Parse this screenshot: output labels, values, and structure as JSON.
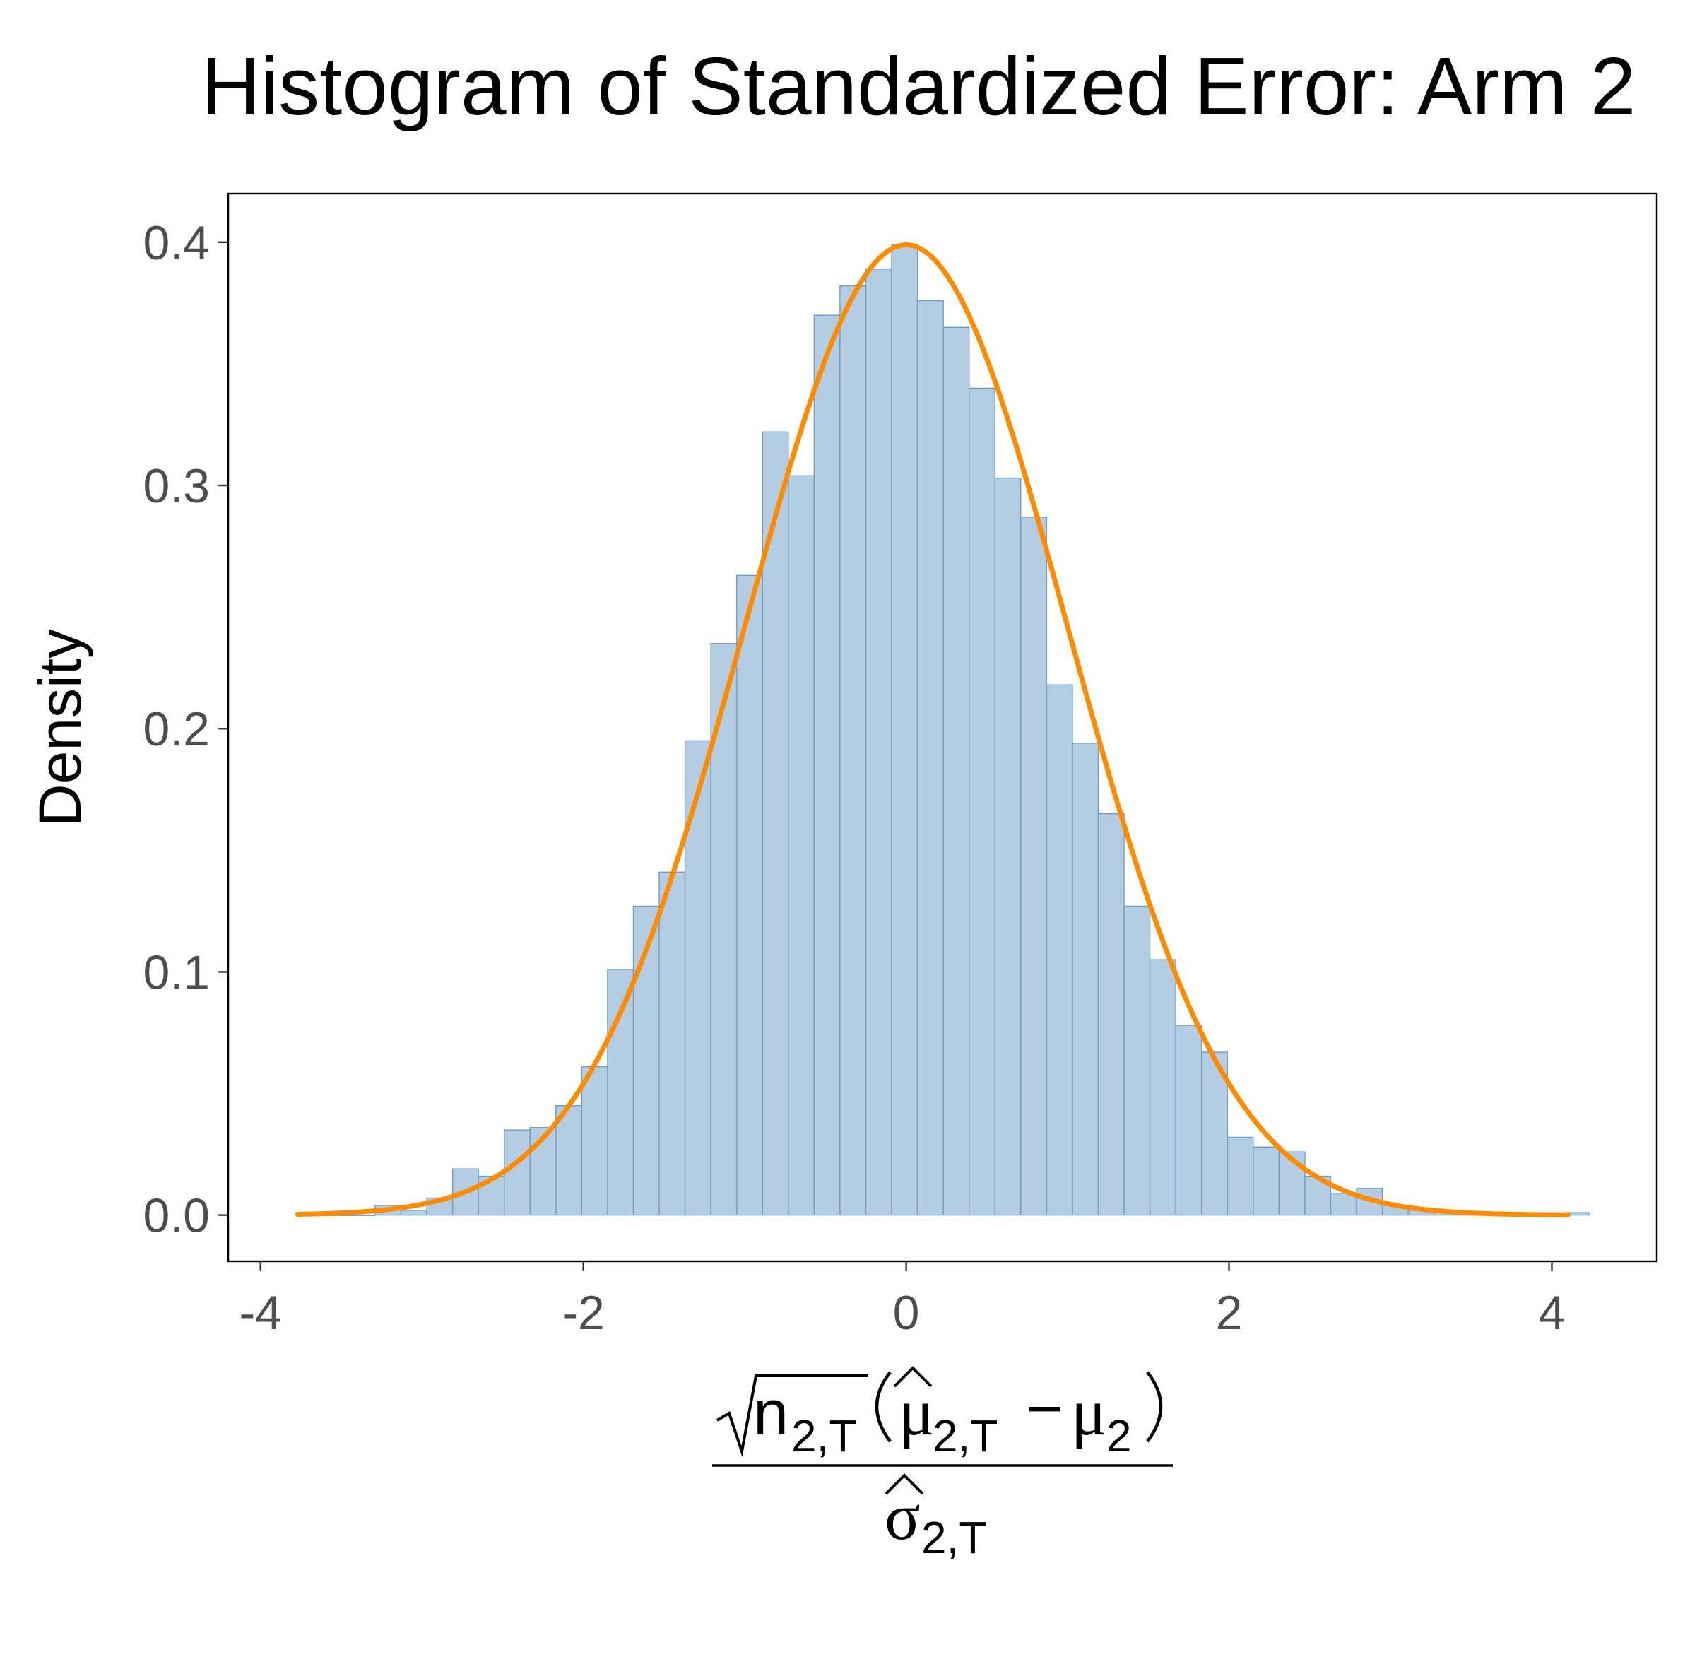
{
  "chart_data": {
    "type": "bar",
    "title": "Histogram of Standardized Error: Arm 2",
    "ylabel": "Density",
    "xlabel": {
      "numerator_root": "n",
      "root_sub": "2,T",
      "mu_hat_sub": "2,T",
      "minus": "−",
      "mu_sub": "2",
      "denominator_sub": "2,T"
    },
    "xlim": [
      -4.2,
      4.65
    ],
    "ylim": [
      -0.019,
      0.42
    ],
    "x_ticks": [
      -4,
      -2,
      0,
      2,
      4
    ],
    "x_tick_labels": [
      "-4",
      "-2",
      "0",
      "2",
      "4"
    ],
    "y_ticks": [
      0.0,
      0.1,
      0.2,
      0.3,
      0.4
    ],
    "y_tick_labels": [
      "0.0",
      "0.1",
      "0.2",
      "0.3",
      "0.4"
    ],
    "grid": false,
    "bin_width": 0.16,
    "bins": [
      {
        "x0": -3.77,
        "density": 0.001
      },
      {
        "x0": -3.61,
        "density": 0.0
      },
      {
        "x0": -3.45,
        "density": 0.0
      },
      {
        "x0": -3.29,
        "density": 0.004
      },
      {
        "x0": -3.13,
        "density": 0.002
      },
      {
        "x0": -2.97,
        "density": 0.007
      },
      {
        "x0": -2.81,
        "density": 0.019
      },
      {
        "x0": -2.65,
        "density": 0.016
      },
      {
        "x0": -2.49,
        "density": 0.035
      },
      {
        "x0": -2.33,
        "density": 0.036
      },
      {
        "x0": -2.17,
        "density": 0.045
      },
      {
        "x0": -2.01,
        "density": 0.061
      },
      {
        "x0": -1.85,
        "density": 0.101
      },
      {
        "x0": -1.69,
        "density": 0.127
      },
      {
        "x0": -1.53,
        "density": 0.141
      },
      {
        "x0": -1.37,
        "density": 0.195
      },
      {
        "x0": -1.21,
        "density": 0.235
      },
      {
        "x0": -1.05,
        "density": 0.263
      },
      {
        "x0": -0.89,
        "density": 0.322
      },
      {
        "x0": -0.73,
        "density": 0.304
      },
      {
        "x0": -0.57,
        "density": 0.37
      },
      {
        "x0": -0.41,
        "density": 0.382
      },
      {
        "x0": -0.25,
        "density": 0.389
      },
      {
        "x0": -0.09,
        "density": 0.399
      },
      {
        "x0": 0.07,
        "density": 0.376
      },
      {
        "x0": 0.23,
        "density": 0.365
      },
      {
        "x0": 0.39,
        "density": 0.34
      },
      {
        "x0": 0.55,
        "density": 0.303
      },
      {
        "x0": 0.71,
        "density": 0.287
      },
      {
        "x0": 0.87,
        "density": 0.218
      },
      {
        "x0": 1.03,
        "density": 0.194
      },
      {
        "x0": 1.19,
        "density": 0.165
      },
      {
        "x0": 1.35,
        "density": 0.127
      },
      {
        "x0": 1.51,
        "density": 0.105
      },
      {
        "x0": 1.67,
        "density": 0.078
      },
      {
        "x0": 1.83,
        "density": 0.067
      },
      {
        "x0": 1.99,
        "density": 0.032
      },
      {
        "x0": 2.15,
        "density": 0.028
      },
      {
        "x0": 2.31,
        "density": 0.026
      },
      {
        "x0": 2.47,
        "density": 0.016
      },
      {
        "x0": 2.63,
        "density": 0.009
      },
      {
        "x0": 2.79,
        "density": 0.011
      },
      {
        "x0": 2.95,
        "density": 0.004
      },
      {
        "x0": 3.11,
        "density": 0.002
      },
      {
        "x0": 3.27,
        "density": 0.002
      },
      {
        "x0": 3.43,
        "density": 0.001
      },
      {
        "x0": 3.59,
        "density": 0.0
      },
      {
        "x0": 3.75,
        "density": 0.0
      },
      {
        "x0": 3.91,
        "density": 0.0
      },
      {
        "x0": 4.07,
        "density": 0.001
      }
    ],
    "series": [
      {
        "type": "line",
        "function": "standard normal density",
        "x_range": [
          -3.77,
          4.1
        ],
        "color": "#ff8c00"
      }
    ],
    "colors": {
      "bar_fill": "#b5cde2",
      "bar_stroke": "#6f9cc4",
      "curve": "#ff8c00",
      "frame": "#000000",
      "tick_text": "#4d4d4d"
    }
  }
}
